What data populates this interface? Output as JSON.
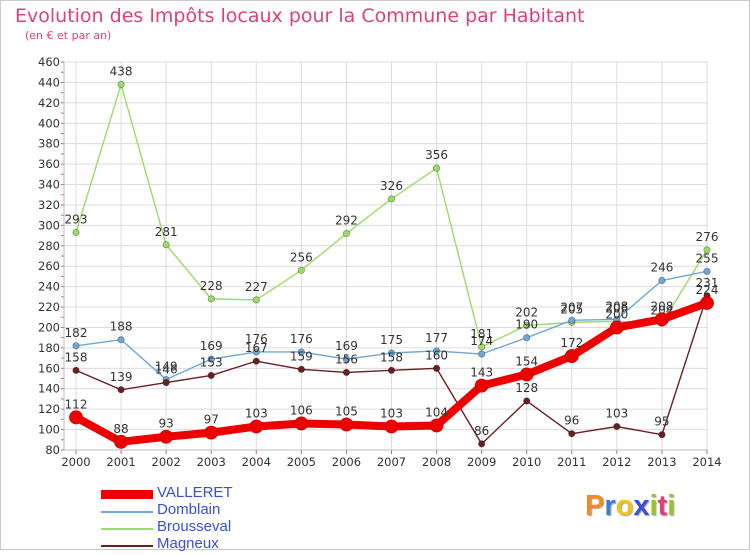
{
  "title": "Evolution des Impôts locaux pour la Commune par Habitant",
  "subtitle": "(en € et par an)",
  "logo": {
    "text": "Proxiti",
    "letters": [
      "P",
      "r",
      "o",
      "x",
      "i",
      "t",
      "i"
    ],
    "colors": [
      "#f28c1e",
      "#3a7fd6",
      "#f2c21e",
      "#3a4fd6",
      "#9bc42a",
      "#e0407a",
      "#9bc42a"
    ]
  },
  "chart_data": {
    "type": "line",
    "title": "Evolution des Impôts locaux pour la Commune par Habitant",
    "subtitle": "(en € et par an)",
    "xlabel": "",
    "ylabel": "",
    "x": [
      "2000",
      "2001",
      "2002",
      "2003",
      "2004",
      "2005",
      "2006",
      "2007",
      "2008",
      "2009",
      "2010",
      "2011",
      "2012",
      "2013",
      "2014"
    ],
    "ylim": [
      80,
      460
    ],
    "yticks": [
      80,
      100,
      120,
      140,
      160,
      180,
      200,
      220,
      240,
      260,
      280,
      300,
      320,
      340,
      360,
      380,
      400,
      420,
      440,
      460
    ],
    "grid": true,
    "legend_position": "bottom-left",
    "series": [
      {
        "name": "Brousseval",
        "color": "#99dd66",
        "values": [
          293,
          438,
          281,
          228,
          227,
          256,
          292,
          326,
          356,
          181,
          202,
          205,
          206,
          204,
          276
        ]
      },
      {
        "name": "Domblain",
        "color": "#6fa8d8",
        "values": [
          182,
          188,
          149,
          169,
          176,
          176,
          169,
          175,
          177,
          174,
          190,
          207,
          208,
          246,
          255
        ]
      },
      {
        "name": "Magneux",
        "color": "#6b1e24",
        "values": [
          158,
          139,
          146,
          153,
          167,
          159,
          156,
          158,
          160,
          86,
          128,
          96,
          103,
          95,
          231
        ]
      },
      {
        "name": "VALLERET",
        "color": "#ee0000",
        "values": [
          112,
          88,
          93,
          97,
          103,
          106,
          105,
          103,
          104,
          143,
          154,
          172,
          200,
          208,
          224
        ]
      }
    ],
    "legend_order": [
      "VALLERET",
      "Domblain",
      "Brousseval",
      "Magneux"
    ]
  }
}
